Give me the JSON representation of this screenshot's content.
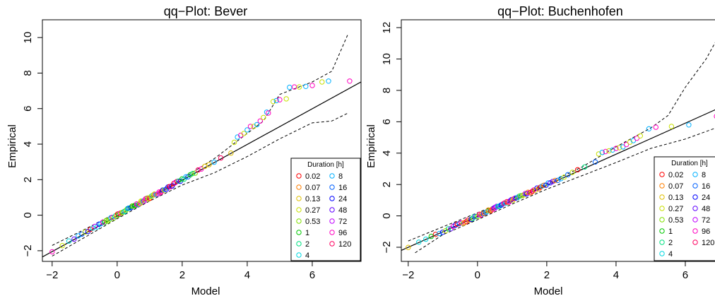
{
  "chart_data": [
    {
      "type": "scatter",
      "title": "qq−Plot: Bever",
      "xlabel": "Model",
      "ylabel": "Empirical",
      "xlim": [
        -2.3,
        7.5
      ],
      "ylim": [
        -2.6,
        11.0
      ],
      "xticks": [
        -2,
        0,
        2,
        4,
        6
      ],
      "xtick_labels": [
        "−2",
        "0",
        "2",
        "4",
        "6"
      ],
      "yticks": [
        -2,
        0,
        2,
        4,
        6,
        8,
        10
      ],
      "ytick_labels": [
        "−2",
        "0",
        "2",
        "4",
        "6",
        "8",
        "10"
      ],
      "grid": false,
      "reference_line": {
        "x": [
          -2.3,
          7.5
        ],
        "y": [
          -2.35,
          7.5
        ]
      },
      "confidence_band": {
        "upper": {
          "x": [
            -2.0,
            -1.0,
            0.0,
            1.0,
            2.0,
            3.0,
            4.0,
            4.5,
            5.0,
            6.0,
            6.6,
            7.1
          ],
          "y": [
            -1.7,
            -0.8,
            0.15,
            1.05,
            2.05,
            3.2,
            4.6,
            5.3,
            6.8,
            7.5,
            8.1,
            10.2
          ]
        },
        "lower": {
          "x": [
            -2.0,
            -1.0,
            0.0,
            1.0,
            2.0,
            3.0,
            4.0,
            5.0,
            6.0,
            6.6,
            7.1
          ],
          "y": [
            -2.3,
            -1.25,
            -0.2,
            0.8,
            1.7,
            2.4,
            3.3,
            4.3,
            5.2,
            5.3,
            5.75
          ]
        }
      },
      "points": {
        "x_start": -2.0,
        "x_end": 3.5,
        "count": 90,
        "slope": 1.0,
        "intercept": 0.0,
        "extra": [
          {
            "x": 3.6,
            "y": 4.1
          },
          {
            "x": 3.7,
            "y": 4.4
          },
          {
            "x": 3.8,
            "y": 4.5
          },
          {
            "x": 3.9,
            "y": 4.6
          },
          {
            "x": 4.0,
            "y": 4.8
          },
          {
            "x": 4.1,
            "y": 5.0
          },
          {
            "x": 4.2,
            "y": 5.0
          },
          {
            "x": 4.3,
            "y": 5.1
          },
          {
            "x": 4.4,
            "y": 5.3
          },
          {
            "x": 4.5,
            "y": 5.5
          },
          {
            "x": 4.6,
            "y": 5.8
          },
          {
            "x": 4.65,
            "y": 5.75
          },
          {
            "x": 4.8,
            "y": 6.4
          },
          {
            "x": 4.9,
            "y": 6.45
          },
          {
            "x": 5.0,
            "y": 6.5
          },
          {
            "x": 5.2,
            "y": 6.55
          },
          {
            "x": 5.3,
            "y": 7.2
          },
          {
            "x": 5.45,
            "y": 7.22
          },
          {
            "x": 5.6,
            "y": 7.22
          },
          {
            "x": 5.8,
            "y": 7.25
          },
          {
            "x": 6.0,
            "y": 7.3
          },
          {
            "x": 6.3,
            "y": 7.5
          },
          {
            "x": 6.5,
            "y": 7.55
          },
          {
            "x": 7.15,
            "y": 7.55
          }
        ]
      },
      "legend": {
        "title": "Duration [h]",
        "placement": "bottom-right",
        "columns": [
          [
            "0.02",
            "0.07",
            "0.13",
            "0.27",
            "0.53",
            "1",
            "2",
            "4"
          ],
          [
            "8",
            "16",
            "24",
            "48",
            "72",
            "96",
            "120"
          ]
        ],
        "colors": [
          [
            "#ff0000",
            "#ff7f00",
            "#e0c000",
            "#c8e000",
            "#80e000",
            "#00c800",
            "#00e080",
            "#00d8e0"
          ],
          [
            "#00b0ff",
            "#0060ff",
            "#0000ff",
            "#6000ff",
            "#c000ff",
            "#ff00c0",
            "#ff0060"
          ]
        ]
      }
    },
    {
      "type": "scatter",
      "title": "qq−Plot: Buchenhofen",
      "xlabel": "Model",
      "ylabel": "Empirical",
      "xlim": [
        -2.2,
        7.0
      ],
      "ylim": [
        -2.9,
        12.5
      ],
      "xticks": [
        -2,
        0,
        2,
        4,
        6
      ],
      "xtick_labels": [
        "−2",
        "0",
        "2",
        "4",
        "6"
      ],
      "yticks": [
        -2,
        0,
        2,
        4,
        6,
        8,
        10,
        12
      ],
      "ytick_labels": [
        "−2",
        "0",
        "2",
        "4",
        "6",
        "8",
        "10",
        "12"
      ],
      "grid": false,
      "reference_line": {
        "x": [
          -2.2,
          7.0
        ],
        "y": [
          -2.2,
          6.9
        ]
      },
      "confidence_band": {
        "upper": {
          "x": [
            -2.0,
            -1.0,
            0.0,
            1.0,
            2.0,
            3.0,
            4.0,
            5.0,
            5.5,
            6.0,
            6.6,
            7.0
          ],
          "y": [
            -1.6,
            -0.7,
            0.2,
            1.1,
            2.05,
            3.1,
            4.4,
            5.6,
            6.4,
            8.2,
            10.0,
            11.6
          ]
        },
        "lower": {
          "x": [
            -1.8,
            -1.0,
            0.0,
            1.0,
            2.0,
            3.0,
            4.0,
            5.0,
            6.0,
            7.0
          ],
          "y": [
            -2.35,
            -1.2,
            -0.25,
            0.75,
            1.7,
            2.55,
            3.4,
            4.3,
            4.9,
            5.7
          ]
        }
      },
      "points": {
        "x_start": -2.0,
        "x_end": 3.4,
        "count": 90,
        "slope": 1.0,
        "intercept": 0.0,
        "extra": [
          {
            "x": 3.5,
            "y": 3.95
          },
          {
            "x": 3.6,
            "y": 4.05
          },
          {
            "x": 3.7,
            "y": 4.1
          },
          {
            "x": 3.8,
            "y": 4.15
          },
          {
            "x": 3.9,
            "y": 4.2
          },
          {
            "x": 4.0,
            "y": 4.3
          },
          {
            "x": 4.1,
            "y": 4.35
          },
          {
            "x": 4.2,
            "y": 4.4
          },
          {
            "x": 4.3,
            "y": 4.55
          },
          {
            "x": 4.4,
            "y": 4.7
          },
          {
            "x": 4.5,
            "y": 4.8
          },
          {
            "x": 4.6,
            "y": 4.95
          },
          {
            "x": 4.7,
            "y": 5.1
          },
          {
            "x": 4.95,
            "y": 5.55
          },
          {
            "x": 5.15,
            "y": 5.65
          },
          {
            "x": 5.6,
            "y": 5.7
          },
          {
            "x": 6.1,
            "y": 5.8
          },
          {
            "x": 6.9,
            "y": 6.35
          }
        ]
      },
      "legend": {
        "title": "Duration [h]",
        "placement": "bottom-right",
        "columns": [
          [
            "0.02",
            "0.07",
            "0.13",
            "0.27",
            "0.53",
            "1",
            "2",
            "4"
          ],
          [
            "8",
            "16",
            "24",
            "48",
            "72",
            "96",
            "120"
          ]
        ],
        "colors": [
          [
            "#ff0000",
            "#ff7f00",
            "#e0c000",
            "#c8e000",
            "#80e000",
            "#00c800",
            "#00e080",
            "#00d8e0"
          ],
          [
            "#00b0ff",
            "#0060ff",
            "#0000ff",
            "#6000ff",
            "#c000ff",
            "#ff00c0",
            "#ff0060"
          ]
        ]
      }
    }
  ]
}
